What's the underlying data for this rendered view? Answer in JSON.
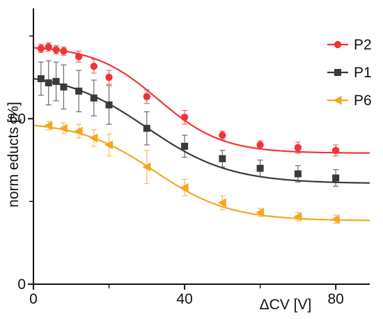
{
  "chart_data": {
    "type": "line",
    "title": "",
    "xlabel": "ΔCV [V]",
    "ylabel": "norm educts [%]",
    "xlim": [
      0,
      89
    ],
    "ylim": [
      0,
      100
    ],
    "x_ticks": [
      {
        "value": 0,
        "label": "0"
      },
      {
        "value": 40,
        "label": "40"
      },
      {
        "value": 80,
        "label": "80"
      }
    ],
    "y_ticks": [
      {
        "value": 0,
        "label": "0"
      },
      {
        "value": 60,
        "label": "60"
      }
    ],
    "x_minor_ticks": [
      20,
      60
    ],
    "y_minor_ticks": [
      30,
      90
    ],
    "grid": false,
    "legend_position": "top-right",
    "series": [
      {
        "name": "P2",
        "color": "#f03434",
        "marker": "circle",
        "points": [
          {
            "x": 2,
            "y": 85.5,
            "err": 1.5
          },
          {
            "x": 4,
            "y": 86,
            "err": 1.5
          },
          {
            "x": 6,
            "y": 85,
            "err": 1.5
          },
          {
            "x": 8,
            "y": 84.5,
            "err": 1.5
          },
          {
            "x": 12,
            "y": 82.5,
            "err": 2
          },
          {
            "x": 16,
            "y": 79,
            "err": 2.5
          },
          {
            "x": 20,
            "y": 75,
            "err": 2.5
          },
          {
            "x": 30,
            "y": 68,
            "err": 2.5
          },
          {
            "x": 40,
            "y": 60.5,
            "err": 2.5
          },
          {
            "x": 50,
            "y": 54,
            "err": 1.5
          },
          {
            "x": 60,
            "y": 50.5,
            "err": 1.5
          },
          {
            "x": 70,
            "y": 49.5,
            "err": 2
          },
          {
            "x": 80,
            "y": 48.5,
            "err": 2
          }
        ],
        "fit": {
          "bottom": 47.5,
          "top": 86.5,
          "midpoint": 33,
          "slope": 8.5
        }
      },
      {
        "name": "P1",
        "color": "#3a3a3a",
        "marker": "square",
        "points": [
          {
            "x": 2,
            "y": 74.5,
            "err": 6
          },
          {
            "x": 4,
            "y": 73,
            "err": 8
          },
          {
            "x": 6,
            "y": 73.5,
            "err": 7
          },
          {
            "x": 8,
            "y": 71.5,
            "err": 8
          },
          {
            "x": 12,
            "y": 70,
            "err": 7.5
          },
          {
            "x": 16,
            "y": 67.5,
            "err": 6.5
          },
          {
            "x": 20,
            "y": 65,
            "err": 7
          },
          {
            "x": 30,
            "y": 56.5,
            "err": 6
          },
          {
            "x": 40,
            "y": 50,
            "err": 4
          },
          {
            "x": 50,
            "y": 45.5,
            "err": 3
          },
          {
            "x": 60,
            "y": 42,
            "err": 3
          },
          {
            "x": 70,
            "y": 40,
            "err": 3
          },
          {
            "x": 80,
            "y": 38.5,
            "err": 3
          }
        ],
        "fit": {
          "bottom": 36.5,
          "top": 77,
          "midpoint": 30,
          "slope": 11
        }
      },
      {
        "name": "P6",
        "color": "#f5a623",
        "marker": "triangle-left",
        "points": [
          {
            "x": 4,
            "y": 57.5,
            "err": 1.5
          },
          {
            "x": 8,
            "y": 56.5,
            "err": 2
          },
          {
            "x": 12,
            "y": 55.5,
            "err": 2.5
          },
          {
            "x": 16,
            "y": 53,
            "err": 3
          },
          {
            "x": 20,
            "y": 50.5,
            "err": 4
          },
          {
            "x": 30,
            "y": 42.5,
            "err": 6
          },
          {
            "x": 40,
            "y": 35,
            "err": 3
          },
          {
            "x": 50,
            "y": 29.5,
            "err": 2.5
          },
          {
            "x": 60,
            "y": 26,
            "err": 1.5
          },
          {
            "x": 70,
            "y": 24.5,
            "err": 1.5
          },
          {
            "x": 80,
            "y": 23.5,
            "err": 1.5
          }
        ],
        "fit": {
          "bottom": 23,
          "top": 59,
          "midpoint": 32,
          "slope": 10
        }
      }
    ]
  }
}
